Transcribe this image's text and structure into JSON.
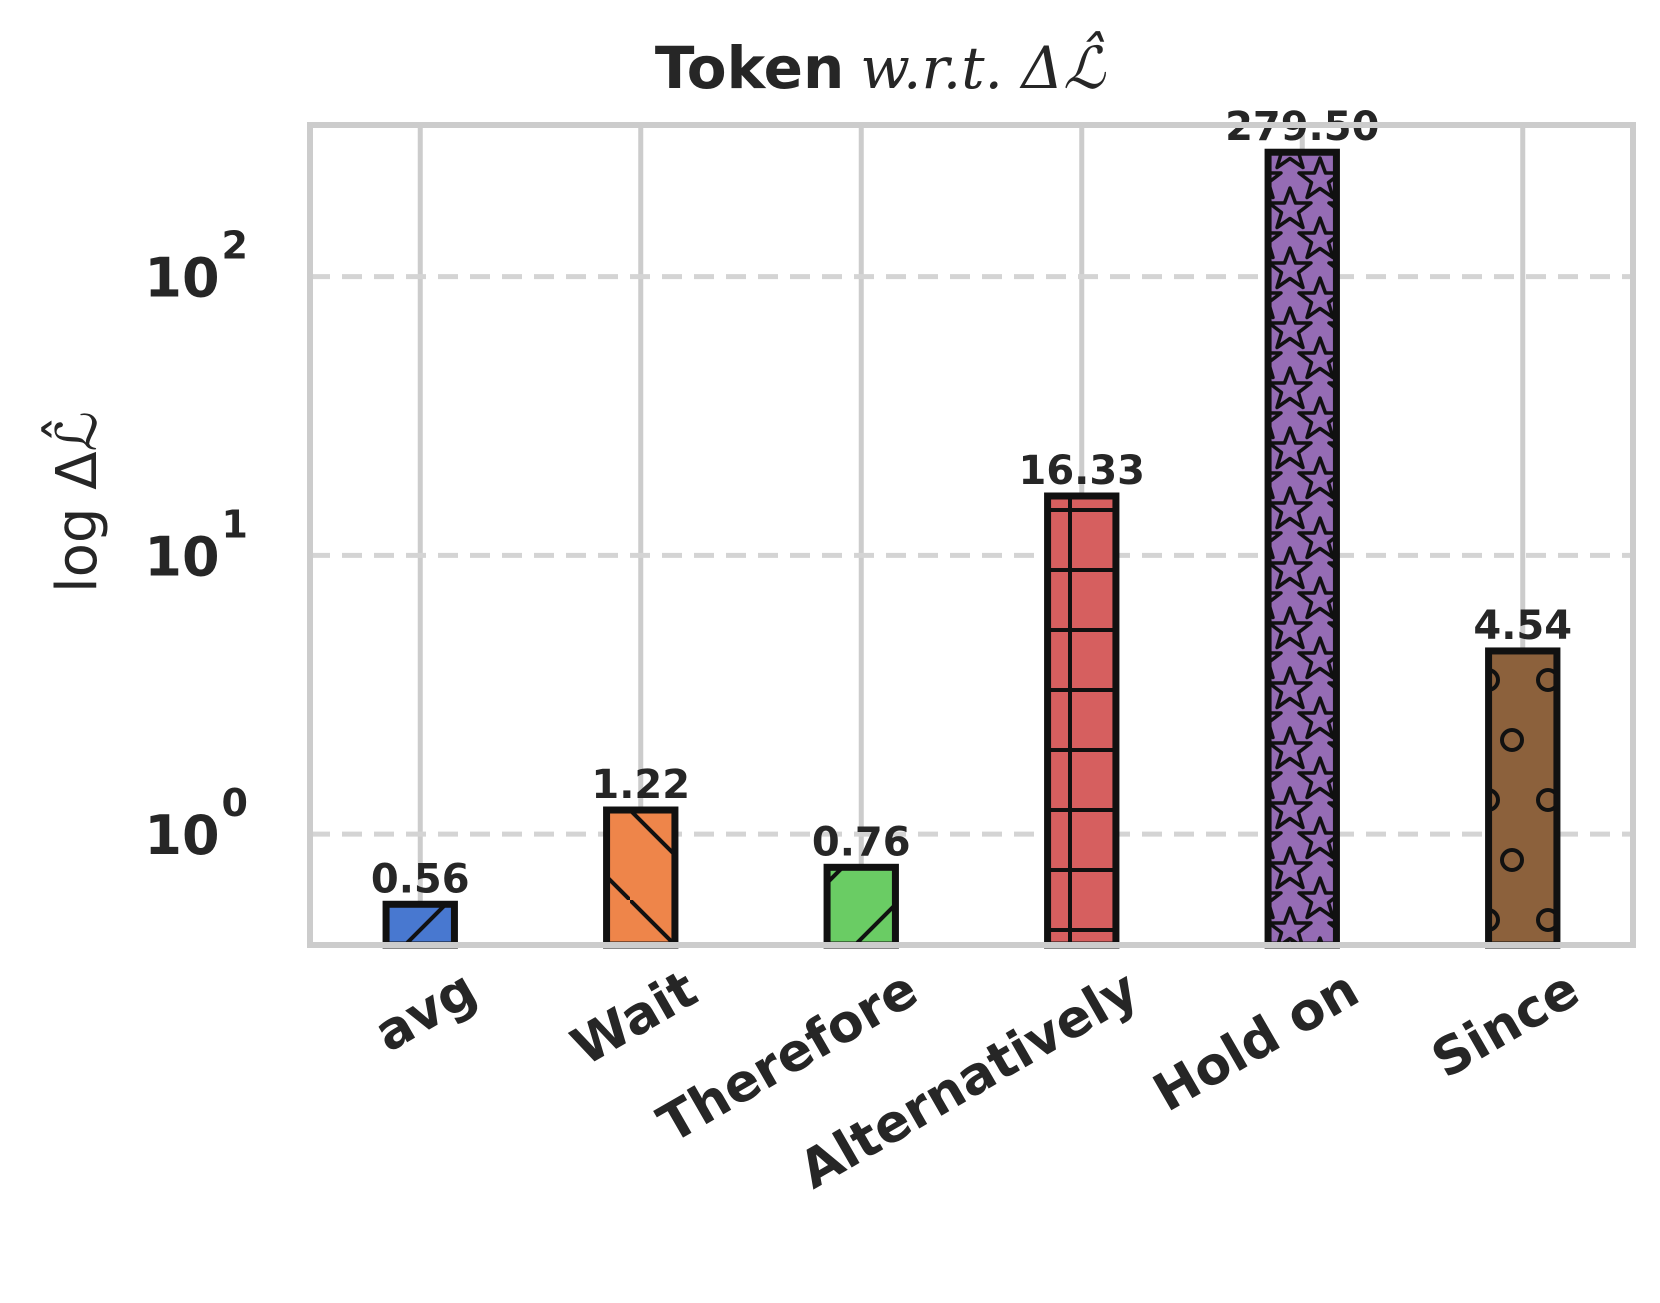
{
  "chart_data": {
    "type": "bar",
    "title_prefix": "Token",
    "title_math": "w.r.t. Δℒ̂",
    "ylabel": "log Δℒ̂",
    "yscale": "log",
    "ylim": [
      0.4,
      350
    ],
    "yticks": [
      {
        "base": "10",
        "exp": "0",
        "value": 1
      },
      {
        "base": "10",
        "exp": "1",
        "value": 10
      },
      {
        "base": "10",
        "exp": "2",
        "value": 100
      }
    ],
    "grid": true,
    "categories": [
      "avg",
      "Wait",
      "Therefore",
      "Alternatively",
      "Hold on",
      "Since"
    ],
    "values": [
      0.56,
      1.22,
      0.76,
      16.33,
      279.5,
      4.54
    ],
    "value_labels": [
      "0.56",
      "1.22",
      "0.76",
      "16.33",
      "279.50",
      "4.54"
    ],
    "colors": [
      "#4878d0",
      "#ee854a",
      "#6acc64",
      "#d65f5f",
      "#956cb4",
      "#8c613c"
    ],
    "hatches": [
      "/",
      "\\",
      "/",
      "+",
      "*",
      "o"
    ]
  }
}
